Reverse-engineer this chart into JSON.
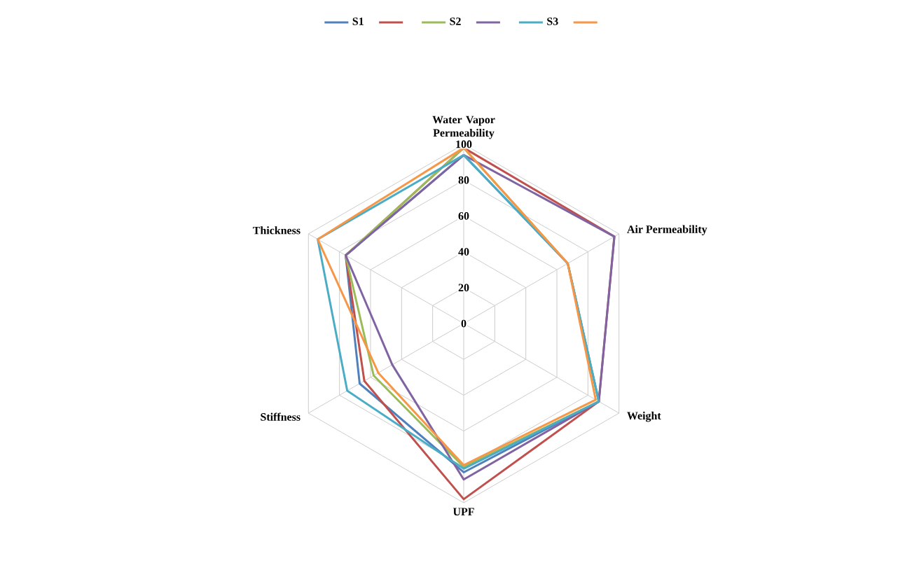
{
  "chart_data": {
    "type": "radar",
    "categories": [
      "Water Vapor Permeability",
      "Air Permeability",
      "Weight",
      "UPF",
      "Stiffness",
      "Thickness"
    ],
    "ylim": [
      0,
      100
    ],
    "yticks": [
      0,
      20,
      40,
      60,
      80,
      100
    ],
    "grid": true,
    "legend": "top",
    "series": [
      {
        "name": "S1",
        "color": "#4f81bd",
        "values": [
          94,
          67,
          87,
          83,
          67,
          76
        ]
      },
      {
        "color": "#c0504d",
        "values": [
          98,
          97,
          87,
          98,
          64,
          76
        ]
      },
      {
        "name": "S2",
        "color": "#9bbb59",
        "values": [
          98,
          67,
          87,
          80,
          58,
          76
        ]
      },
      {
        "color": "#8064a2",
        "values": [
          94,
          97,
          87,
          87,
          46,
          76
        ]
      },
      {
        "name": "S3",
        "color": "#4bacc6",
        "values": [
          94,
          67,
          87,
          81,
          75,
          94
        ]
      },
      {
        "color": "#f79646",
        "values": [
          98,
          67,
          85,
          79,
          55,
          94
        ]
      }
    ]
  }
}
